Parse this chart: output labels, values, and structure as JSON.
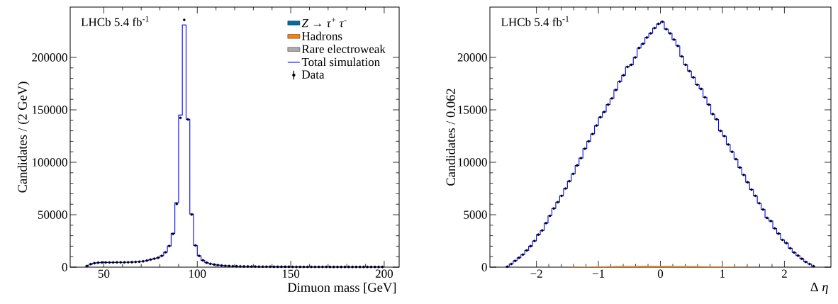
{
  "chart_data": [
    {
      "type": "step",
      "legend": "top right",
      "xlabel": "Dimuon mass [GeV]",
      "ylabel": "Candidates / (2 GeV)",
      "annotations": [
        "LHCb 5.4 fb$^{-1}$"
      ],
      "xlim": [
        32,
        208
      ],
      "xticks": [
        50,
        100,
        150,
        200
      ],
      "ylim": [
        0,
        248000
      ],
      "yticks": [
        0,
        50000,
        100000,
        150000,
        200000
      ],
      "x": [
        40,
        42,
        44,
        46,
        48,
        50,
        52,
        54,
        56,
        58,
        60,
        62,
        64,
        66,
        68,
        70,
        72,
        74,
        76,
        78,
        80,
        82,
        84,
        86,
        88,
        90,
        92,
        94,
        96,
        98,
        100,
        102,
        104,
        106,
        108,
        110,
        112,
        114,
        116,
        118,
        120,
        122,
        124,
        126,
        128,
        130,
        132,
        134,
        136,
        138,
        140,
        142,
        144,
        146,
        148,
        150,
        152,
        154,
        156,
        158,
        160,
        162,
        164,
        166,
        168,
        170,
        172,
        174,
        176,
        178,
        180,
        182,
        184,
        186,
        188,
        190,
        192,
        194,
        196,
        198,
        200
      ],
      "series": [
        {
          "name": "*Z* → *τ*$^{+}$ *τ*$^{-}$",
          "type": "area",
          "color": "#006ba4",
          "values": [
            null,
            null,
            null,
            null,
            null,
            null,
            null,
            null,
            null,
            null,
            null,
            null,
            null,
            null,
            null,
            null,
            null,
            null,
            null,
            null,
            null,
            null,
            null,
            null,
            null,
            null,
            null,
            null,
            null,
            null,
            null,
            null,
            null,
            null,
            null,
            null,
            null,
            null,
            null,
            null,
            null,
            null,
            null,
            null,
            null,
            null,
            null,
            null,
            null,
            null,
            null,
            null,
            null,
            null,
            null,
            null,
            null,
            null,
            null,
            null,
            null,
            null,
            null,
            null,
            null,
            null,
            null,
            null,
            null,
            null,
            null,
            null,
            null,
            null,
            null,
            null,
            null,
            null,
            null,
            null,
            null
          ]
        },
        {
          "name": "Hadrons",
          "type": "area",
          "color": "#ff800e",
          "values": [
            null,
            null,
            null,
            null,
            null,
            null,
            null,
            null,
            null,
            null,
            null,
            null,
            null,
            null,
            null,
            null,
            null,
            null,
            null,
            null,
            null,
            null,
            null,
            null,
            null,
            null,
            null,
            null,
            null,
            null,
            null,
            null,
            null,
            null,
            null,
            null,
            null,
            null,
            null,
            null,
            null,
            null,
            null,
            null,
            null,
            null,
            null,
            null,
            null,
            null,
            null,
            null,
            null,
            null,
            null,
            null,
            null,
            null,
            null,
            null,
            null,
            null,
            null,
            null,
            null,
            null,
            null,
            null,
            null,
            null,
            null,
            null,
            null,
            null,
            null,
            null,
            null,
            null,
            null,
            null,
            null
          ]
        },
        {
          "name": "Rare electroweak",
          "type": "area",
          "color": "#ababab",
          "values": [
            null,
            null,
            null,
            null,
            null,
            null,
            null,
            null,
            null,
            null,
            null,
            null,
            null,
            null,
            null,
            null,
            null,
            null,
            null,
            null,
            null,
            null,
            null,
            null,
            null,
            null,
            null,
            null,
            null,
            null,
            null,
            null,
            null,
            null,
            null,
            null,
            null,
            null,
            null,
            null,
            null,
            null,
            null,
            null,
            null,
            null,
            null,
            null,
            null,
            null,
            null,
            null,
            null,
            null,
            null,
            null,
            null,
            null,
            null,
            null,
            null,
            null,
            null,
            null,
            null,
            null,
            null,
            null,
            null,
            null,
            null,
            null,
            null,
            null,
            null,
            null,
            null,
            null,
            null,
            null,
            null
          ]
        },
        {
          "name": "Total simulation",
          "type": "step",
          "color": "#0000ff",
          "values": [
            1100,
            2900,
            3800,
            4300,
            4500,
            4500,
            4500,
            4500,
            4600,
            4600,
            4600,
            4700,
            4800,
            5000,
            5200,
            5600,
            6300,
            7200,
            8100,
            9000,
            10800,
            14200,
            20200,
            32200,
            61400,
            145000,
            231000,
            141000,
            50600,
            20700,
            10800,
            6500,
            4300,
            3200,
            2500,
            2000,
            1600,
            1300,
            1100,
            1000,
            900,
            800,
            700,
            700,
            600,
            600,
            500,
            500,
            500,
            500,
            400,
            400,
            400,
            400,
            400,
            300,
            300,
            300,
            300,
            300,
            300,
            300,
            300,
            300,
            300,
            200,
            200,
            200,
            200,
            200,
            200,
            200,
            200,
            200,
            200,
            200,
            200,
            200,
            200,
            200,
            200
          ]
        },
        {
          "name": "Data",
          "type": "scatter",
          "marker": "circle",
          "color": "#000000",
          "x": [
            41,
            43,
            45,
            47,
            49,
            51,
            53,
            55,
            57,
            59,
            61,
            63,
            65,
            67,
            69,
            71,
            73,
            75,
            77,
            79,
            81,
            83,
            85,
            87,
            89,
            91,
            93,
            95,
            97,
            99,
            101,
            103,
            105,
            107,
            109,
            111,
            113,
            115,
            117,
            119,
            121,
            123,
            125,
            127,
            129,
            131,
            133,
            135,
            137,
            139,
            141,
            143,
            145,
            147,
            149,
            151,
            153,
            155,
            157,
            159,
            161,
            163,
            165,
            167,
            169,
            171,
            173,
            175,
            177,
            179,
            181,
            183,
            185,
            187,
            189,
            191,
            193,
            195,
            197,
            199
          ],
          "values": [
            1100,
            2900,
            3800,
            4300,
            4500,
            4500,
            4500,
            4500,
            4600,
            4600,
            4600,
            4700,
            4800,
            5000,
            5200,
            5600,
            6300,
            7200,
            8100,
            9000,
            10800,
            14200,
            20200,
            31700,
            60300,
            142400,
            235800,
            140900,
            50200,
            20700,
            10800,
            6500,
            4300,
            3200,
            2500,
            2000,
            1600,
            1300,
            1100,
            1000,
            900,
            800,
            700,
            700,
            600,
            600,
            500,
            500,
            500,
            500,
            400,
            400,
            400,
            400,
            400,
            300,
            300,
            300,
            300,
            300,
            300,
            300,
            300,
            300,
            300,
            200,
            200,
            200,
            200,
            200,
            200,
            200,
            200,
            200,
            200,
            200,
            200,
            200,
            200,
            200
          ]
        }
      ]
    },
    {
      "type": "step",
      "xlabel": "Δ *η*",
      "ylabel": "Candidates / 0.062",
      "annotations": [
        "LHCb 5.4 fb$^{-1}$"
      ],
      "xlim": [
        -2.75,
        2.75
      ],
      "xticks": [
        {
          "value": -2,
          "label": "−2"
        },
        {
          "value": -1,
          "label": "−1"
        },
        0,
        1,
        2
      ],
      "ylim": [
        0,
        24800
      ],
      "yticks": [
        0,
        5000,
        10000,
        15000,
        20000
      ],
      "x": [
        -2.5,
        -2.4375,
        -2.375,
        -2.3125,
        -2.25,
        -2.1875,
        -2.125,
        -2.0625,
        -2,
        -1.9375,
        -1.875,
        -1.8125,
        -1.75,
        -1.6875,
        -1.625,
        -1.5625,
        -1.5,
        -1.4375,
        -1.375,
        -1.3125,
        -1.25,
        -1.1875,
        -1.125,
        -1.0625,
        -1,
        -0.9375,
        -0.875,
        -0.8125,
        -0.75,
        -0.6875,
        -0.625,
        -0.5625,
        -0.5,
        -0.4375,
        -0.375,
        -0.3125,
        -0.25,
        -0.1875,
        -0.125,
        -0.0625,
        0,
        0.0625,
        0.125,
        0.1875,
        0.25,
        0.3125,
        0.375,
        0.4375,
        0.5,
        0.5625,
        0.625,
        0.6875,
        0.75,
        0.8125,
        0.875,
        0.9375,
        1,
        1.0625,
        1.125,
        1.1875,
        1.25,
        1.3125,
        1.375,
        1.4375,
        1.5,
        1.5625,
        1.625,
        1.6875,
        1.75,
        1.8125,
        1.875,
        1.9375,
        2,
        2.0625,
        2.125,
        2.1875,
        2.25,
        2.3125,
        2.375,
        2.4375,
        2.5
      ],
      "series": [
        {
          "type": "area",
          "color": "#ff800e",
          "values": [
            0,
            0,
            0,
            0,
            0,
            0,
            0,
            0,
            0,
            0,
            0,
            0,
            0,
            0,
            0,
            0,
            20,
            30,
            40,
            50,
            60,
            70,
            80,
            80,
            90,
            90,
            100,
            100,
            110,
            110,
            110,
            120,
            120,
            120,
            130,
            130,
            130,
            130,
            130,
            130,
            130,
            130,
            130,
            120,
            120,
            120,
            120,
            110,
            110,
            110,
            100,
            100,
            90,
            90,
            80,
            80,
            70,
            60,
            50,
            40,
            40,
            30,
            20,
            20,
            0,
            0,
            0,
            0,
            0,
            0,
            0,
            0,
            0,
            0,
            0,
            0,
            0,
            0,
            0,
            0,
            0
          ]
        },
        {
          "type": "step",
          "color": "#0000ff",
          "values": [
            50,
            300,
            600,
            900,
            1200,
            1600,
            2000,
            2500,
            3100,
            3500,
            4200,
            4900,
            5600,
            6200,
            6800,
            7500,
            8200,
            8900,
            9700,
            10400,
            11300,
            12000,
            12700,
            13500,
            14300,
            14800,
            15500,
            16100,
            16900,
            17700,
            18300,
            19100,
            19300,
            20000,
            20900,
            21300,
            21900,
            22300,
            22800,
            23200,
            23400,
            22700,
            22300,
            21700,
            21100,
            20100,
            19300,
            18700,
            18100,
            17400,
            17000,
            16200,
            15500,
            14600,
            14100,
            13000,
            12500,
            11700,
            11000,
            10300,
            9500,
            8800,
            8100,
            7400,
            6800,
            6100,
            5500,
            4700,
            4400,
            3700,
            3200,
            2600,
            2300,
            1800,
            1400,
            1100,
            800,
            500,
            300,
            100,
            100
          ]
        },
        {
          "type": "scatter",
          "marker": "circle",
          "color": "#000000",
          "x": [
            -2.46875,
            -2.40625,
            -2.34375,
            -2.28125,
            -2.21875,
            -2.15625,
            -2.09375,
            -2.03125,
            -1.96875,
            -1.90625,
            -1.84375,
            -1.78125,
            -1.71875,
            -1.65625,
            -1.59375,
            -1.53125,
            -1.46875,
            -1.40625,
            -1.34375,
            -1.28125,
            -1.21875,
            -1.15625,
            -1.09375,
            -1.03125,
            -0.96875,
            -0.90625,
            -0.84375,
            -0.78125,
            -0.71875,
            -0.65625,
            -0.59375,
            -0.53125,
            -0.46875,
            -0.40625,
            -0.34375,
            -0.28125,
            -0.21875,
            -0.15625,
            -0.09375,
            -0.03125,
            0.03125,
            0.09375,
            0.15625,
            0.21875,
            0.28125,
            0.34375,
            0.40625,
            0.46875,
            0.53125,
            0.59375,
            0.65625,
            0.71875,
            0.78125,
            0.84375,
            0.90625,
            0.96875,
            1.03125,
            1.09375,
            1.15625,
            1.21875,
            1.28125,
            1.34375,
            1.40625,
            1.46875,
            1.53125,
            1.59375,
            1.65625,
            1.71875,
            1.78125,
            1.84375,
            1.90625,
            1.96875,
            2.03125,
            2.09375,
            2.15625,
            2.21875,
            2.28125,
            2.34375,
            2.40625,
            2.46875
          ],
          "values": [
            50,
            300,
            600,
            900,
            1200,
            1600,
            2000,
            2500,
            3100,
            3500,
            4200,
            4900,
            5600,
            6200,
            6800,
            7500,
            8200,
            8900,
            9700,
            10400,
            11300,
            12000,
            12700,
            13500,
            14300,
            14800,
            15500,
            16100,
            16900,
            17700,
            18300,
            19100,
            19300,
            20000,
            20900,
            21300,
            21900,
            22300,
            22800,
            23200,
            23400,
            22700,
            22300,
            21700,
            21100,
            20100,
            19300,
            18700,
            18100,
            17400,
            17000,
            16200,
            15500,
            14600,
            14100,
            13000,
            12500,
            11700,
            11000,
            10300,
            9500,
            8800,
            8100,
            7400,
            6800,
            6100,
            5500,
            4700,
            4400,
            3700,
            3200,
            2600,
            2300,
            1800,
            1400,
            1100,
            800,
            500,
            300,
            100
          ]
        }
      ]
    }
  ]
}
